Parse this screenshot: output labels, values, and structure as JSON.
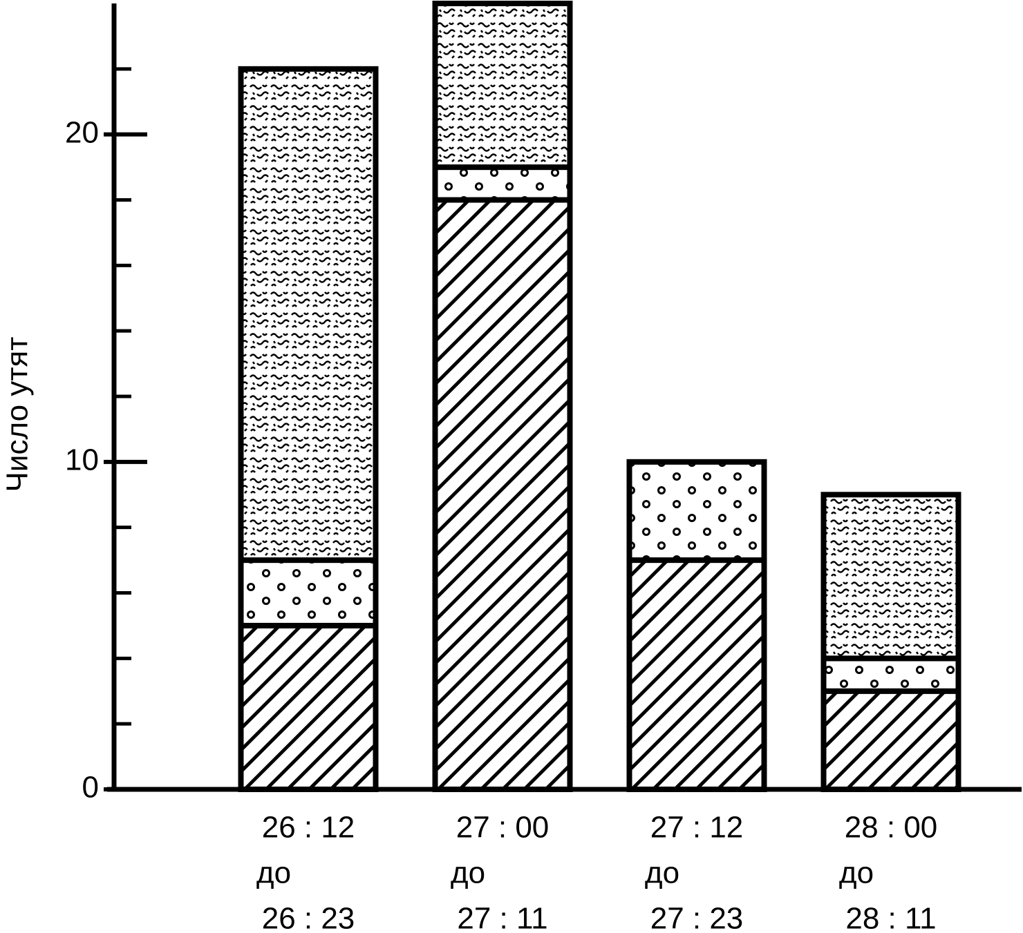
{
  "chart_data": {
    "type": "stacked-bar",
    "y_label": "Число утят",
    "categories": [
      [
        "26 : 12",
        "до",
        "26 : 23"
      ],
      [
        "27 : 00",
        "до",
        "27 : 11"
      ],
      [
        "27 : 12",
        "до",
        "27 : 23"
      ],
      [
        "28 : 00",
        "до",
        "28 : 11"
      ]
    ],
    "series": [
      {
        "pattern": "hatch",
        "color": "#000000",
        "values": [
          5,
          18,
          7,
          3
        ]
      },
      {
        "pattern": "dots",
        "color": "#000000",
        "values": [
          2,
          1,
          3,
          1
        ]
      },
      {
        "pattern": "wavy",
        "color": "#000000",
        "values": [
          15,
          5,
          0,
          5
        ]
      }
    ],
    "ylim": [
      0,
      24
    ],
    "yticks": [
      0,
      10,
      20
    ],
    "minor_yticks": [
      2,
      4,
      6,
      8,
      12,
      14,
      16,
      18,
      22
    ]
  }
}
